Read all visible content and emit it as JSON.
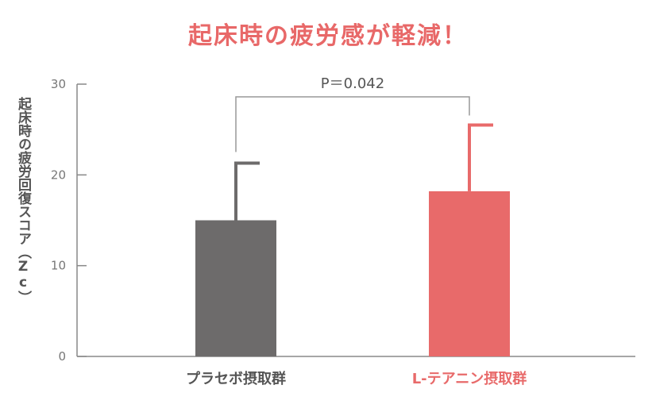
{
  "title": "起床時の疲労感が軽減！",
  "colors": {
    "title": "#e86868",
    "placebo": "#6d6b6b",
    "theanine": "#e86a6a",
    "axis": "#888888",
    "tick_label": "#777777",
    "bracket": "#999999"
  },
  "chart_data": {
    "type": "bar",
    "title": "起床時の疲労感が軽減！",
    "xlabel": "",
    "ylabel": "起床時の疲労回復スコア（Zc）",
    "ylim": [
      0,
      30
    ],
    "yticks": [
      0,
      10,
      20,
      30
    ],
    "ytick_labels": [
      "0",
      "10",
      "20",
      "30"
    ],
    "categories": [
      "プラセボ摂取群",
      "L-テアニン摂取群"
    ],
    "values": [
      15.0,
      18.2
    ],
    "error_upper": [
      6.3,
      7.3
    ],
    "bar_colors": [
      "#6d6b6b",
      "#e86a6a"
    ],
    "label_colors": [
      "#555555",
      "#e86a6a"
    ],
    "grid": false,
    "annotation": "P＝0.042"
  }
}
